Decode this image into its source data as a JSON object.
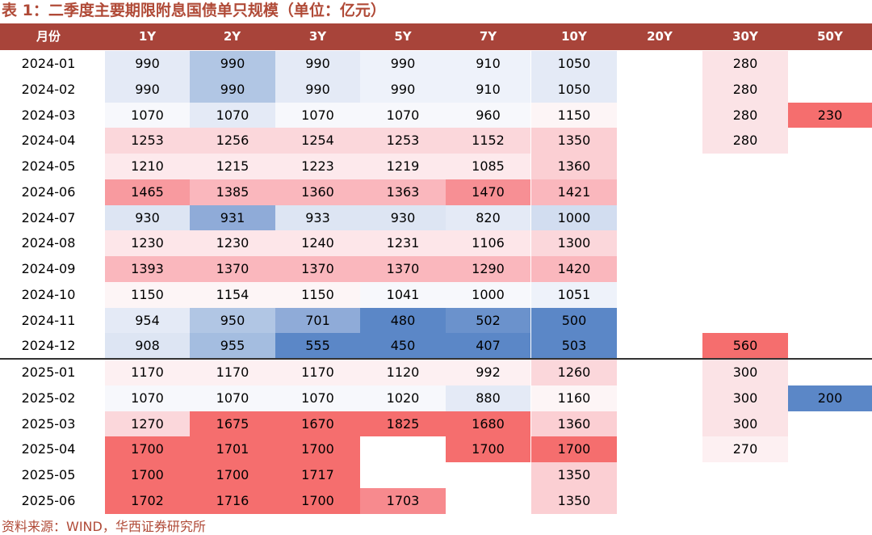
{
  "title": "表 1：二季度主要期限附息国债单只规模（单位：亿元）",
  "source": "资料来源：WIND，华西证券研究所",
  "chart_data": {
    "type": "heatmap",
    "row_header": "月份",
    "columns": [
      "1Y",
      "2Y",
      "3Y",
      "5Y",
      "7Y",
      "10Y",
      "20Y",
      "30Y",
      "50Y"
    ],
    "rows": [
      {
        "label": "2024-01",
        "values": [
          990,
          990,
          990,
          990,
          910,
          1050,
          null,
          280,
          null
        ]
      },
      {
        "label": "2024-02",
        "values": [
          990,
          990,
          990,
          990,
          910,
          1050,
          null,
          280,
          null
        ]
      },
      {
        "label": "2024-03",
        "values": [
          1070,
          1070,
          1070,
          1070,
          960,
          1150,
          null,
          280,
          230
        ]
      },
      {
        "label": "2024-04",
        "values": [
          1253,
          1256,
          1254,
          1253,
          1152,
          1350,
          null,
          280,
          null
        ]
      },
      {
        "label": "2024-05",
        "values": [
          1210,
          1215,
          1223,
          1219,
          1085,
          1360,
          null,
          null,
          null
        ]
      },
      {
        "label": "2024-06",
        "values": [
          1465,
          1385,
          1360,
          1363,
          1470,
          1421,
          null,
          null,
          null
        ]
      },
      {
        "label": "2024-07",
        "values": [
          930,
          931,
          933,
          930,
          820,
          1000,
          null,
          null,
          null
        ]
      },
      {
        "label": "2024-08",
        "values": [
          1230,
          1230,
          1240,
          1231,
          1106,
          1300,
          null,
          null,
          null
        ]
      },
      {
        "label": "2024-09",
        "values": [
          1393,
          1370,
          1370,
          1370,
          1290,
          1420,
          null,
          null,
          null
        ]
      },
      {
        "label": "2024-10",
        "values": [
          1150,
          1154,
          1150,
          1041,
          1000,
          1051,
          null,
          null,
          null
        ]
      },
      {
        "label": "2024-11",
        "values": [
          954,
          950,
          701,
          480,
          502,
          500,
          null,
          null,
          null
        ]
      },
      {
        "label": "2024-12",
        "values": [
          908,
          955,
          555,
          450,
          407,
          503,
          null,
          560,
          null
        ]
      },
      {
        "label": "2025-01",
        "values": [
          1170,
          1170,
          1170,
          1120,
          992,
          1260,
          null,
          300,
          null
        ]
      },
      {
        "label": "2025-02",
        "values": [
          1070,
          1070,
          1070,
          1020,
          880,
          1160,
          null,
          300,
          200
        ]
      },
      {
        "label": "2025-03",
        "values": [
          1270,
          1675,
          1670,
          1825,
          1680,
          1360,
          null,
          300,
          null
        ]
      },
      {
        "label": "2025-04",
        "values": [
          1700,
          1701,
          1700,
          null,
          1700,
          1700,
          null,
          270,
          null
        ]
      },
      {
        "label": "2025-05",
        "values": [
          1700,
          1700,
          1717,
          null,
          null,
          1350,
          null,
          null,
          null
        ]
      },
      {
        "label": "2025-06",
        "values": [
          1702,
          1716,
          1700,
          1703,
          null,
          1350,
          null,
          null,
          null
        ]
      }
    ],
    "cell_colors": [
      [
        "#e4eaf6",
        "#b1c6e4",
        "#e4eaf6",
        "#eef2fa",
        "#eef2fa",
        "#e4eaf6",
        null,
        "#fbe3e6",
        null
      ],
      [
        "#e4eaf6",
        "#b1c6e4",
        "#e4eaf6",
        "#eef2fa",
        "#eef2fa",
        "#e4eaf6",
        null,
        "#fbe3e6",
        null
      ],
      [
        "#f7f8fc",
        "#e4eaf6",
        "#f7f8fc",
        "#f7f8fc",
        "#f7f8fc",
        "#fdf5f6",
        null,
        "#fbe3e6",
        "#f56e6e"
      ],
      [
        "#fbd7db",
        "#fbd7db",
        "#fbd7db",
        "#fbd7db",
        "#fbd7db",
        "#fbcfd3",
        null,
        "#fbe3e6",
        null
      ],
      [
        "#fde9ec",
        "#fde9ec",
        "#fde9ec",
        "#fde9ec",
        "#fde9ec",
        "#fbcfd3",
        null,
        null,
        null
      ],
      [
        "#f89a9f",
        "#fab7bd",
        "#fab7bd",
        "#fab7bd",
        "#f78f94",
        "#fab7bd",
        null,
        null,
        null
      ],
      [
        "#dde5f3",
        "#8fabd8",
        "#dde5f3",
        "#dde5f3",
        "#e4eaf6",
        "#d2ddf0",
        null,
        null,
        null
      ],
      [
        "#fde6e9",
        "#fde6e9",
        "#fde6e9",
        "#fde6e9",
        "#fde6e9",
        "#fbd7db",
        null,
        null,
        null
      ],
      [
        "#fab7bd",
        "#fab7bd",
        "#fab7bd",
        "#fab7bd",
        "#fab7bd",
        "#fab7bd",
        null,
        null,
        null
      ],
      [
        "#fdf5f6",
        "#fdf5f6",
        "#fdf5f6",
        "#f7f8fc",
        "#f7f8fc",
        "#eef2fa",
        null,
        null,
        null
      ],
      [
        "#e4eaf6",
        "#b1c6e4",
        "#8fabd8",
        "#5b87c7",
        "#6b92cc",
        "#5b87c7",
        null,
        null,
        null
      ],
      [
        "#dde5f3",
        "#a4bde0",
        "#5b87c7",
        "#5b87c7",
        "#5b87c7",
        "#5b87c7",
        null,
        "#f56e6e",
        null
      ],
      [
        "#fdf0f2",
        "#fdf0f2",
        "#fdf0f2",
        "#fdf0f2",
        "#fdf0f2",
        "#fbd7db",
        null,
        "#fbe3e6",
        null
      ],
      [
        "#f7f8fc",
        "#f7f8fc",
        "#f7f8fc",
        "#f7f8fc",
        "#e4eaf6",
        "#fdf5f6",
        null,
        "#fbe3e6",
        "#5b87c7"
      ],
      [
        "#fbd7db",
        "#f56e6e",
        "#f56e6e",
        "#f56e6e",
        "#f56e6e",
        "#fbcfd3",
        null,
        "#fbe3e6",
        null
      ],
      [
        "#f56e6e",
        "#f56e6e",
        "#f56e6e",
        null,
        "#f56e6e",
        "#f56e6e",
        null,
        "#fdf0f2",
        null
      ],
      [
        "#f56e6e",
        "#f56e6e",
        "#f56e6e",
        null,
        null,
        "#fbcfd3",
        null,
        null,
        null
      ],
      [
        "#f56e6e",
        "#f56e6e",
        "#f56e6e",
        "#f78a8e",
        null,
        "#fbcfd3",
        null,
        null,
        null
      ]
    ]
  }
}
